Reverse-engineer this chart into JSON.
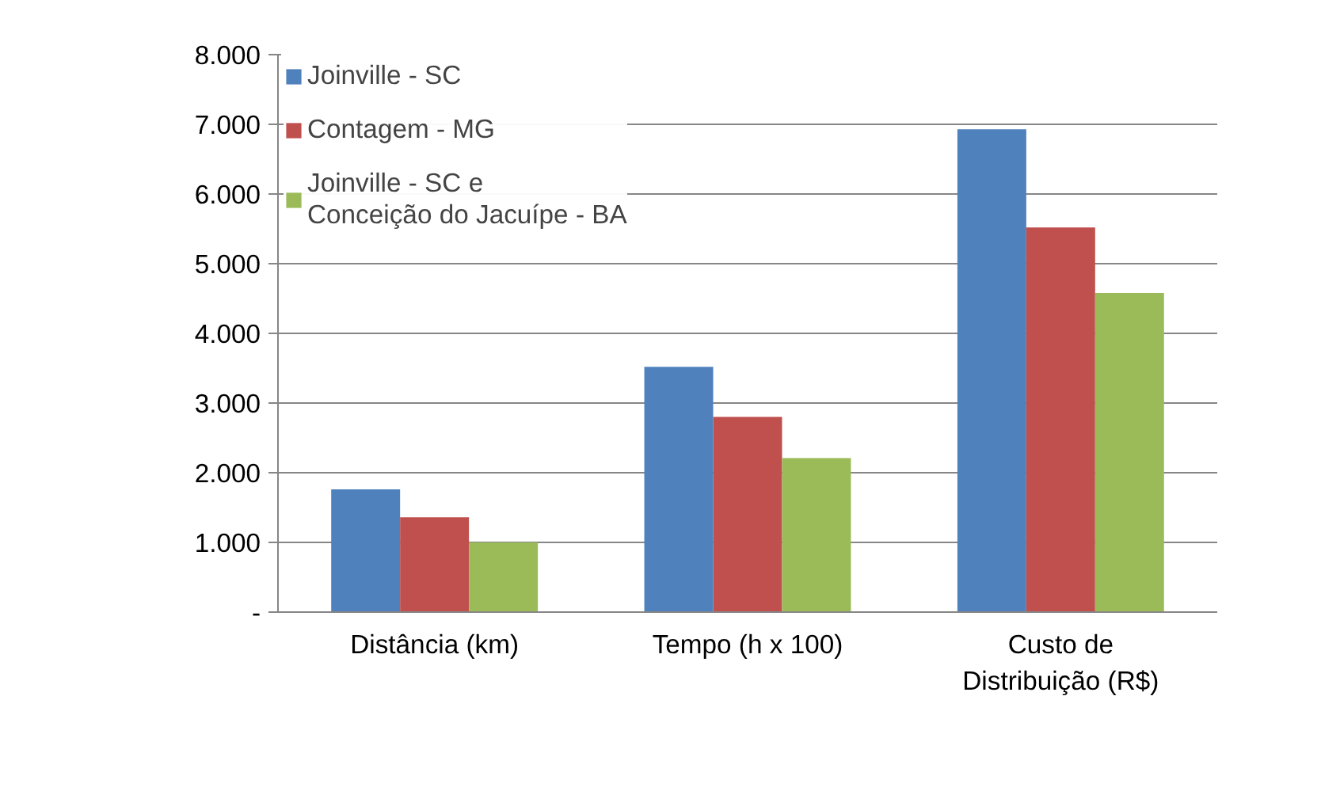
{
  "chart_data": {
    "type": "bar",
    "categories": [
      "Distância (km)",
      "Tempo (h x 100)",
      "Custo de\nDistribuição (R$)"
    ],
    "series": [
      {
        "name": "Joinville - SC",
        "color": "#4f81bd",
        "values": [
          1760,
          3520,
          6930
        ]
      },
      {
        "name": "Contagem - MG",
        "color": "#c0504d",
        "values": [
          1360,
          2800,
          5520
        ]
      },
      {
        "name": "Joinville - SC e\nConceição do Jacuípe - BA",
        "color": "#9bbb59",
        "values": [
          1000,
          2210,
          4580
        ]
      }
    ],
    "ylim": [
      0,
      8000
    ],
    "yticks": [
      {
        "value": 0,
        "label": "-"
      },
      {
        "value": 1000,
        "label": "1.000"
      },
      {
        "value": 2000,
        "label": "2.000"
      },
      {
        "value": 3000,
        "label": "3.000"
      },
      {
        "value": 4000,
        "label": "4.000"
      },
      {
        "value": 5000,
        "label": "5.000"
      },
      {
        "value": 6000,
        "label": "6.000"
      },
      {
        "value": 7000,
        "label": "7.000"
      },
      {
        "value": 8000,
        "label": "8.000"
      }
    ],
    "grid": "y",
    "legend": "top left"
  }
}
